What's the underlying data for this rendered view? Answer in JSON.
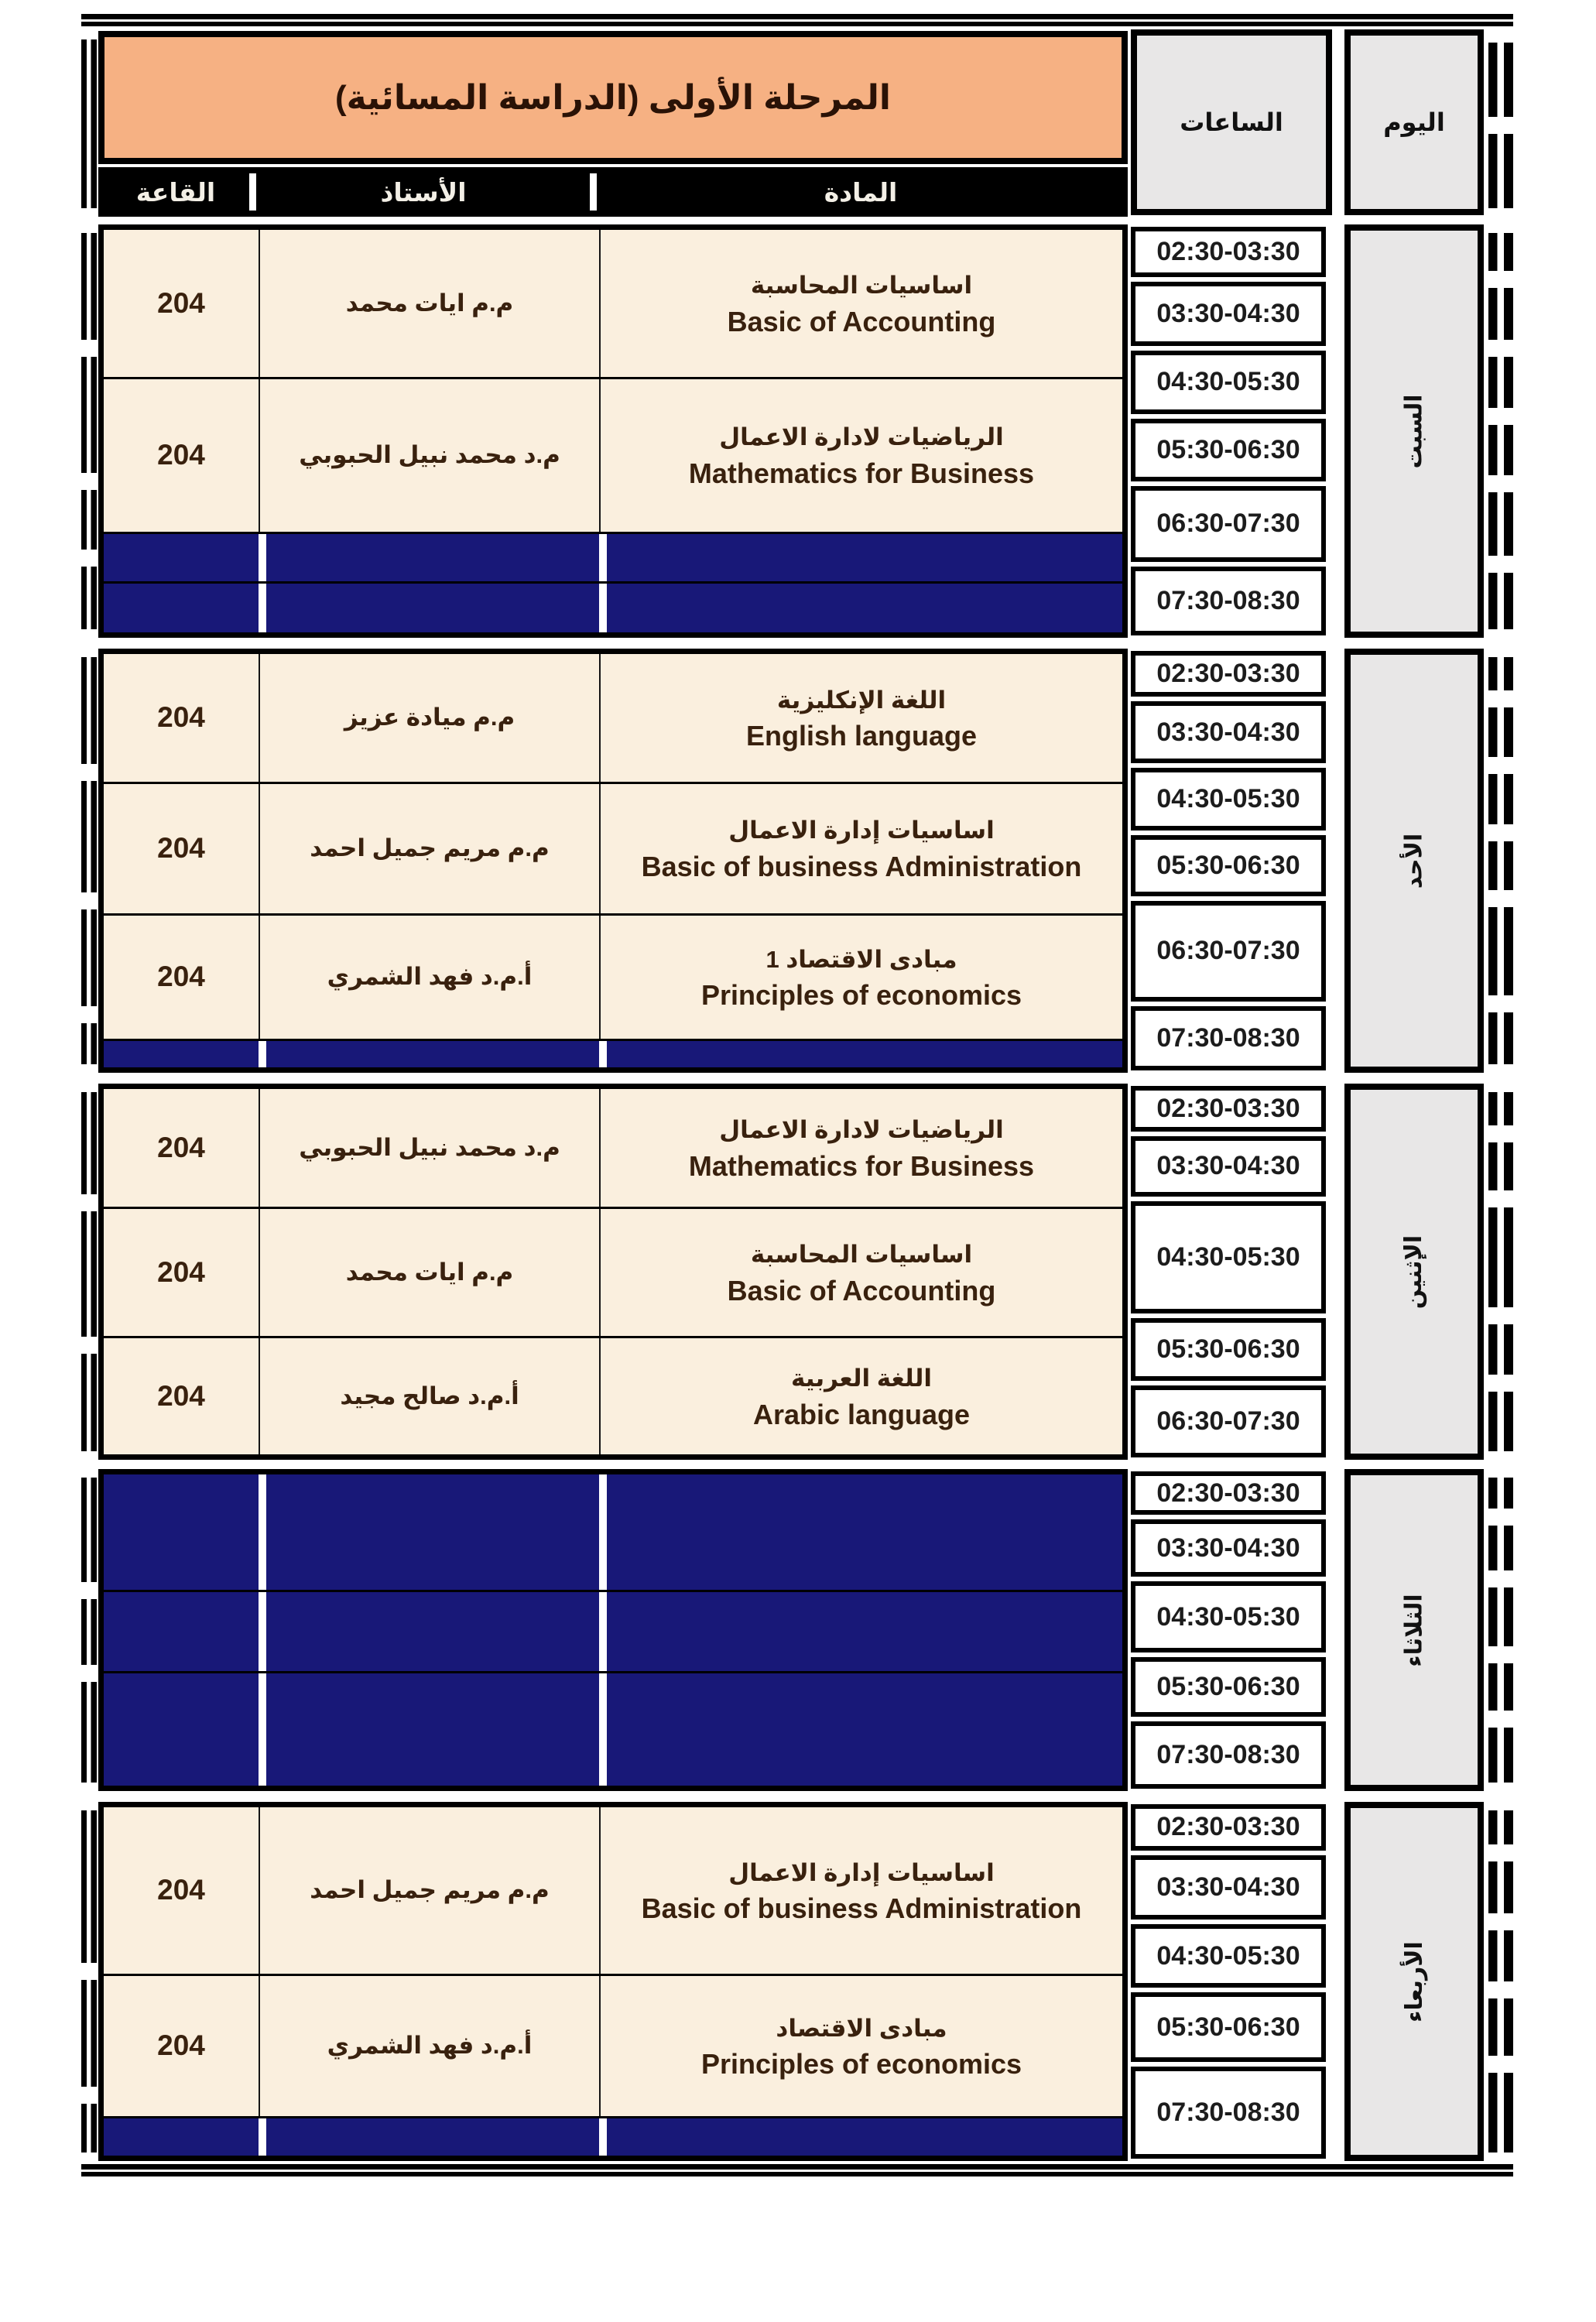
{
  "title": "المرحلة الأولى (الدراسة المسائية)",
  "column_headers": {
    "room": "القاعة",
    "teacher": "الأستاذ",
    "subject": "المادة",
    "hours": "الساعات",
    "day": "اليوم"
  },
  "colors": {
    "title_bg": "#F6B183",
    "lesson_bg": "#FAEFDE",
    "empty_bg": "#181878",
    "header_bar_bg": "#000000",
    "header_bar_text": "#F3EFE6",
    "gray_cell_bg": "#E8E7E7",
    "lesson_text": "#39210E",
    "border": "#000000"
  },
  "days": [
    {
      "name": "السبت",
      "times": [
        "02:30-03:30",
        "03:30-04:30",
        "04:30-05:30",
        "05:30-06:30",
        "06:30-07:30",
        "07:30-08:30"
      ],
      "lessons": [
        {
          "empty": false,
          "room": "204",
          "teacher": "م.م ايات محمد",
          "subject_ar": "اساسيات المحاسبة",
          "subject_en": "Basic of Accounting"
        },
        {
          "empty": false,
          "room": "204",
          "teacher": "م.د محمد نبيل الحبوبي",
          "subject_ar": "الرياضيات لادارة الاعمال",
          "subject_en": "Mathematics for Business"
        },
        {
          "empty": true
        },
        {
          "empty": true
        }
      ]
    },
    {
      "name": "الأحد",
      "times": [
        "02:30-03:30",
        "03:30-04:30",
        "04:30-05:30",
        "05:30-06:30",
        "06:30-07:30",
        "07:30-08:30"
      ],
      "lessons": [
        {
          "empty": false,
          "room": "204",
          "teacher": "م.م ميادة عزيز",
          "subject_ar": "اللغة الإنكليزية",
          "subject_en": "English language"
        },
        {
          "empty": false,
          "room": "204",
          "teacher": "م.م مريم جميل احمد",
          "subject_ar": "اساسيات إدارة الاعمال",
          "subject_en": "Basic of business Administration"
        },
        {
          "empty": false,
          "room": "204",
          "teacher": "أ.م.د فهد الشمري",
          "subject_ar": "مبادى الاقتصاد 1",
          "subject_en": "Principles of economics"
        },
        {
          "empty": true
        }
      ]
    },
    {
      "name": "الإثنين",
      "times": [
        "02:30-03:30",
        "03:30-04:30",
        "04:30-05:30",
        "05:30-06:30",
        "06:30-07:30"
      ],
      "lessons": [
        {
          "empty": false,
          "room": "204",
          "teacher": "م.د محمد نبيل الحبوبي",
          "subject_ar": "الرياضيات لادارة الاعمال",
          "subject_en": "Mathematics for Business"
        },
        {
          "empty": false,
          "room": "204",
          "teacher": "م.م ايات محمد",
          "subject_ar": "اساسيات المحاسبة",
          "subject_en": "Basic of Accounting"
        },
        {
          "empty": false,
          "room": "204",
          "teacher": "أ.م.د صالح مجيد",
          "subject_ar": "اللغة العربية",
          "subject_en": "Arabic language"
        }
      ]
    },
    {
      "name": "الثلاثاء",
      "times": [
        "02:30-03:30",
        "03:30-04:30",
        "04:30-05:30",
        "05:30-06:30",
        "07:30-08:30"
      ],
      "lessons": [
        {
          "empty": true
        },
        {
          "empty": true
        },
        {
          "empty": true
        }
      ]
    },
    {
      "name": "الأربعاء",
      "times": [
        "02:30-03:30",
        "03:30-04:30",
        "04:30-05:30",
        "05:30-06:30",
        "07:30-08:30"
      ],
      "lessons": [
        {
          "empty": false,
          "room": "204",
          "teacher": "م.م مريم جميل احمد",
          "subject_ar": "اساسيات إدارة الاعمال",
          "subject_en": "Basic of business Administration"
        },
        {
          "empty": false,
          "room": "204",
          "teacher": "أ.م.د فهد الشمري",
          "subject_ar": "مبادى الاقتصاد",
          "subject_en": "Principles of economics"
        },
        {
          "empty": true
        }
      ]
    }
  ]
}
